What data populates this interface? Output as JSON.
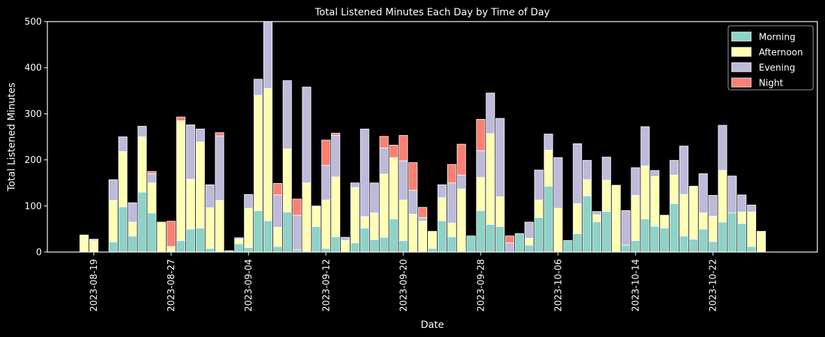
{
  "chart_data": {
    "type": "bar",
    "stacked": true,
    "title": "Total Listened Minutes Each Day by Time of Day",
    "xlabel": "Date",
    "ylabel": "Total Listened Minutes",
    "ylim": [
      0,
      500
    ],
    "yticks": [
      0,
      100,
      200,
      300,
      400,
      500
    ],
    "xticks": [
      "2023-08-19",
      "2023-08-27",
      "2023-09-04",
      "2023-09-12",
      "2023-09-20",
      "2023-09-28",
      "2023-10-06",
      "2023-10-14",
      "2023-10-22"
    ],
    "x_start": "2023-08-17",
    "x_end": "2023-10-30",
    "grid": false,
    "legend_position": "top-right",
    "background": "#000000",
    "categories": [
      "2023-08-17",
      "2023-08-18",
      "2023-08-19",
      "2023-08-20",
      "2023-08-21",
      "2023-08-22",
      "2023-08-23",
      "2023-08-24",
      "2023-08-25",
      "2023-08-26",
      "2023-08-27",
      "2023-08-28",
      "2023-08-29",
      "2023-08-30",
      "2023-08-31",
      "2023-09-01",
      "2023-09-02",
      "2023-09-03",
      "2023-09-04",
      "2023-09-05",
      "2023-09-06",
      "2023-09-07",
      "2023-09-08",
      "2023-09-09",
      "2023-09-10",
      "2023-09-11",
      "2023-09-12",
      "2023-09-13",
      "2023-09-14",
      "2023-09-15",
      "2023-09-16",
      "2023-09-17",
      "2023-09-18",
      "2023-09-19",
      "2023-09-20",
      "2023-09-21",
      "2023-09-22",
      "2023-09-23",
      "2023-09-24",
      "2023-09-25",
      "2023-09-26",
      "2023-09-27",
      "2023-09-28",
      "2023-09-29",
      "2023-09-30",
      "2023-10-01",
      "2023-10-02",
      "2023-10-03",
      "2023-10-04",
      "2023-10-05",
      "2023-10-06",
      "2023-10-07",
      "2023-10-08",
      "2023-10-09",
      "2023-10-10",
      "2023-10-11",
      "2023-10-12",
      "2023-10-13",
      "2023-10-14",
      "2023-10-15",
      "2023-10-16",
      "2023-10-17",
      "2023-10-18",
      "2023-10-19",
      "2023-10-20",
      "2023-10-21",
      "2023-10-22",
      "2023-10-23",
      "2023-10-24",
      "2023-10-25",
      "2023-10-26",
      "2023-10-27",
      "2023-10-28",
      "2023-10-29",
      "2023-10-30"
    ],
    "series": [
      {
        "name": "Morning",
        "color": "#8dd3c7",
        "values": [
          0,
          0,
          0,
          0,
          22,
          98,
          35,
          130,
          85,
          0,
          0,
          25,
          50,
          52,
          8,
          0,
          0,
          18,
          10,
          90,
          68,
          12,
          87,
          5,
          0,
          55,
          8,
          33,
          0,
          20,
          52,
          27,
          32,
          72,
          25,
          0,
          0,
          8,
          68,
          33,
          0,
          35,
          90,
          60,
          55,
          0,
          40,
          15,
          75,
          143,
          0,
          25,
          40,
          122,
          66,
          88,
          0,
          15,
          25,
          72,
          56,
          52,
          105,
          35,
          28,
          50,
          23,
          65,
          85,
          62,
          12,
          0,
          0,
          0,
          0
        ]
      },
      {
        "name": "Afternoon",
        "color": "#ffffb3",
        "values": [
          0,
          37,
          25,
          0,
          90,
          120,
          30,
          120,
          65,
          65,
          12,
          260,
          108,
          187,
          88,
          112,
          0,
          10,
          85,
          250,
          287,
          42,
          137,
          0,
          150,
          45,
          105,
          130,
          25,
          120,
          25,
          58,
          137,
          133,
          88,
          82,
          67,
          37,
          50,
          30,
          137,
          0,
          72,
          197,
          65,
          0,
          0,
          15,
          38,
          78,
          95,
          0,
          65,
          35,
          15,
          68,
          145,
          0,
          98,
          115,
          108,
          28,
          62,
          90,
          115,
          35,
          55,
          112,
          0,
          25,
          75,
          45,
          0,
          0,
          0
        ]
      },
      {
        "name": "Evening",
        "color": "#bebada",
        "values": [
          0,
          0,
          3,
          0,
          45,
          32,
          42,
          23,
          20,
          0,
          0,
          0,
          118,
          28,
          50,
          140,
          3,
          3,
          30,
          35,
          160,
          70,
          148,
          75,
          208,
          0,
          75,
          90,
          7,
          10,
          190,
          65,
          57,
          0,
          85,
          52,
          8,
          0,
          28,
          87,
          30,
          0,
          58,
          88,
          170,
          20,
          0,
          35,
          65,
          35,
          110,
          0,
          130,
          42,
          7,
          50,
          0,
          75,
          60,
          85,
          13,
          0,
          32,
          105,
          0,
          85,
          45,
          98,
          80,
          37,
          15,
          0,
          0,
          0,
          0
        ]
      },
      {
        "name": "Night",
        "color": "#fb8072",
        "values": [
          0,
          0,
          0,
          0,
          0,
          0,
          0,
          0,
          5,
          0,
          55,
          8,
          0,
          0,
          0,
          7,
          0,
          0,
          0,
          0,
          0,
          25,
          0,
          35,
          0,
          0,
          55,
          5,
          0,
          0,
          0,
          0,
          25,
          27,
          55,
          60,
          22,
          0,
          0,
          40,
          67,
          0,
          68,
          0,
          0,
          15,
          0,
          0,
          0,
          0,
          0,
          0,
          0,
          0,
          0,
          0,
          0,
          0,
          0,
          0,
          0,
          0,
          0,
          0,
          0,
          0,
          0,
          0,
          0,
          0,
          0,
          0,
          0,
          0,
          0
        ]
      }
    ]
  }
}
